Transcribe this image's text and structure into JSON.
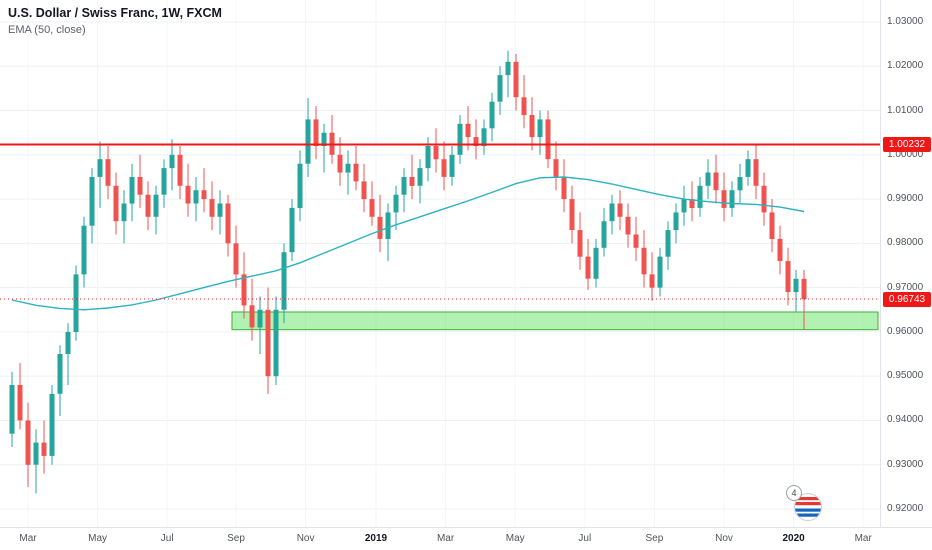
{
  "header": {
    "symbol_title": "U.S. Dollar / Swiss Franc, 1W, FXCM",
    "indicator_label": "EMA (50, close)"
  },
  "watermark": {
    "badge": "4"
  },
  "chart_data": {
    "type": "candlestick",
    "title": "U.S. Dollar / Swiss Franc, 1W, FXCM",
    "symbol": "USD/CHF",
    "interval": "1W",
    "exchange": "FXCM",
    "y_range": [
      0.92,
      1.03
    ],
    "grid": true,
    "colors": {
      "up": "#26a69a",
      "down": "#ef5350",
      "grid_h": "#eef1f6",
      "grid_v": "#f2f4f8"
    },
    "y_tick_labels": [
      "1.03000",
      "1.02000",
      "1.01000",
      "1.00000",
      "0.99000",
      "0.98000",
      "0.97000",
      "0.96000",
      "0.95000",
      "0.94000",
      "0.93000",
      "0.92000"
    ],
    "x_ticks": [
      {
        "label": "Mar",
        "index": 2,
        "bold": false
      },
      {
        "label": "May",
        "index": 10.7,
        "bold": false
      },
      {
        "label": "Jul",
        "index": 19.4,
        "bold": false
      },
      {
        "label": "Sep",
        "index": 28,
        "bold": false
      },
      {
        "label": "Nov",
        "index": 36.7,
        "bold": false
      },
      {
        "label": "2019",
        "index": 45.5,
        "bold": true
      },
      {
        "label": "Mar",
        "index": 54.2,
        "bold": false
      },
      {
        "label": "May",
        "index": 62.9,
        "bold": false
      },
      {
        "label": "Jul",
        "index": 71.6,
        "bold": false
      },
      {
        "label": "Sep",
        "index": 80.3,
        "bold": false
      },
      {
        "label": "Nov",
        "index": 89,
        "bold": false
      },
      {
        "label": "2020",
        "index": 97.7,
        "bold": true
      },
      {
        "label": "Mar",
        "index": 106.4,
        "bold": false
      }
    ],
    "candles": [
      [
        0.937,
        0.951,
        0.934,
        0.948
      ],
      [
        0.948,
        0.953,
        0.938,
        0.94
      ],
      [
        0.94,
        0.944,
        0.925,
        0.93
      ],
      [
        0.93,
        0.938,
        0.9235,
        0.935
      ],
      [
        0.935,
        0.94,
        0.928,
        0.932
      ],
      [
        0.932,
        0.948,
        0.93,
        0.946
      ],
      [
        0.946,
        0.957,
        0.941,
        0.955
      ],
      [
        0.955,
        0.962,
        0.948,
        0.96
      ],
      [
        0.96,
        0.975,
        0.958,
        0.973
      ],
      [
        0.973,
        0.986,
        0.97,
        0.984
      ],
      [
        0.984,
        0.997,
        0.98,
        0.995
      ],
      [
        0.995,
        1.003,
        0.988,
        0.999
      ],
      [
        0.999,
        1.002,
        0.99,
        0.993
      ],
      [
        0.993,
        0.996,
        0.982,
        0.985
      ],
      [
        0.985,
        0.992,
        0.98,
        0.989
      ],
      [
        0.989,
        0.998,
        0.985,
        0.995
      ],
      [
        0.995,
        1.0,
        0.988,
        0.991
      ],
      [
        0.991,
        0.994,
        0.983,
        0.986
      ],
      [
        0.986,
        0.993,
        0.982,
        0.991
      ],
      [
        0.991,
        0.999,
        0.988,
        0.997
      ],
      [
        0.997,
        1.0035,
        0.992,
        1.0
      ],
      [
        1.0,
        1.002,
        0.99,
        0.993
      ],
      [
        0.993,
        0.998,
        0.986,
        0.989
      ],
      [
        0.989,
        0.995,
        0.985,
        0.992
      ],
      [
        0.992,
        0.997,
        0.987,
        0.99
      ],
      [
        0.99,
        0.994,
        0.983,
        0.986
      ],
      [
        0.986,
        0.992,
        0.982,
        0.989
      ],
      [
        0.989,
        0.991,
        0.977,
        0.98
      ],
      [
        0.98,
        0.984,
        0.97,
        0.973
      ],
      [
        0.973,
        0.978,
        0.963,
        0.966
      ],
      [
        0.966,
        0.972,
        0.958,
        0.961
      ],
      [
        0.961,
        0.968,
        0.955,
        0.965
      ],
      [
        0.965,
        0.97,
        0.946,
        0.95
      ],
      [
        0.95,
        0.968,
        0.948,
        0.965
      ],
      [
        0.965,
        0.98,
        0.962,
        0.978
      ],
      [
        0.978,
        0.99,
        0.976,
        0.988
      ],
      [
        0.988,
        1.001,
        0.985,
        0.998
      ],
      [
        0.998,
        1.0128,
        0.995,
        1.008
      ],
      [
        1.008,
        1.011,
        0.999,
        1.002
      ],
      [
        1.002,
        1.007,
        0.996,
        1.005
      ],
      [
        1.005,
        1.009,
        0.998,
        1.0
      ],
      [
        1.0,
        1.004,
        0.993,
        0.996
      ],
      [
        0.996,
        1.001,
        0.991,
        0.998
      ],
      [
        0.998,
        1.002,
        0.992,
        0.994
      ],
      [
        0.994,
        0.998,
        0.987,
        0.99
      ],
      [
        0.99,
        0.994,
        0.984,
        0.986
      ],
      [
        0.986,
        0.991,
        0.978,
        0.981
      ],
      [
        0.981,
        0.989,
        0.976,
        0.987
      ],
      [
        0.987,
        0.993,
        0.983,
        0.991
      ],
      [
        0.991,
        0.997,
        0.987,
        0.995
      ],
      [
        0.995,
        1.0,
        0.99,
        0.993
      ],
      [
        0.993,
        0.999,
        0.989,
        0.997
      ],
      [
        0.997,
        1.004,
        0.994,
        1.002
      ],
      [
        1.002,
        1.006,
        0.996,
        0.999
      ],
      [
        0.999,
        1.003,
        0.992,
        0.995
      ],
      [
        0.995,
        1.002,
        0.993,
        1.0
      ],
      [
        1.0,
        1.009,
        0.998,
        1.007
      ],
      [
        1.007,
        1.011,
        1.001,
        1.004
      ],
      [
        1.004,
        1.008,
        0.999,
        1.002
      ],
      [
        1.002,
        1.008,
        1.0,
        1.006
      ],
      [
        1.006,
        1.014,
        1.003,
        1.012
      ],
      [
        1.012,
        1.02,
        1.009,
        1.018
      ],
      [
        1.018,
        1.0235,
        1.013,
        1.021
      ],
      [
        1.021,
        1.0228,
        1.01,
        1.013
      ],
      [
        1.013,
        1.018,
        1.006,
        1.009
      ],
      [
        1.009,
        1.013,
        1.001,
        1.004
      ],
      [
        1.004,
        1.01,
        1.0,
        1.008
      ],
      [
        1.008,
        1.01,
        0.997,
        0.999
      ],
      [
        0.999,
        1.003,
        0.992,
        0.995
      ],
      [
        0.995,
        0.999,
        0.987,
        0.99
      ],
      [
        0.99,
        0.993,
        0.98,
        0.983
      ],
      [
        0.983,
        0.987,
        0.974,
        0.977
      ],
      [
        0.977,
        0.981,
        0.9695,
        0.972
      ],
      [
        0.972,
        0.981,
        0.97,
        0.979
      ],
      [
        0.979,
        0.988,
        0.977,
        0.985
      ],
      [
        0.985,
        0.991,
        0.982,
        0.989
      ],
      [
        0.989,
        0.992,
        0.983,
        0.986
      ],
      [
        0.986,
        0.989,
        0.979,
        0.982
      ],
      [
        0.982,
        0.986,
        0.976,
        0.979
      ],
      [
        0.979,
        0.983,
        0.97,
        0.973
      ],
      [
        0.973,
        0.978,
        0.967,
        0.97
      ],
      [
        0.97,
        0.979,
        0.968,
        0.977
      ],
      [
        0.977,
        0.985,
        0.974,
        0.983
      ],
      [
        0.983,
        0.989,
        0.98,
        0.987
      ],
      [
        0.987,
        0.993,
        0.984,
        0.99
      ],
      [
        0.99,
        0.994,
        0.985,
        0.988
      ],
      [
        0.988,
        0.995,
        0.986,
        0.993
      ],
      [
        0.993,
        0.999,
        0.99,
        0.996
      ],
      [
        0.996,
        1.0,
        0.989,
        0.992
      ],
      [
        0.992,
        0.996,
        0.985,
        0.988
      ],
      [
        0.988,
        0.994,
        0.986,
        0.992
      ],
      [
        0.992,
        0.998,
        0.989,
        0.995
      ],
      [
        0.995,
        1.001,
        0.993,
        0.999
      ],
      [
        0.999,
        1.0023,
        0.99,
        0.993
      ],
      [
        0.993,
        0.996,
        0.984,
        0.987
      ],
      [
        0.987,
        0.99,
        0.978,
        0.981
      ],
      [
        0.981,
        0.984,
        0.973,
        0.976
      ],
      [
        0.976,
        0.979,
        0.966,
        0.969
      ],
      [
        0.969,
        0.974,
        0.9645,
        0.972
      ],
      [
        0.972,
        0.974,
        0.9605,
        0.9674
      ]
    ],
    "ema": {
      "period": 50,
      "source": "close",
      "color": "#2bb3c0",
      "points": [
        [
          0,
          0.9672
        ],
        [
          3,
          0.966
        ],
        [
          6,
          0.9653
        ],
        [
          9,
          0.965
        ],
        [
          12,
          0.9654
        ],
        [
          15,
          0.9661
        ],
        [
          18,
          0.9672
        ],
        [
          21,
          0.9686
        ],
        [
          24,
          0.97
        ],
        [
          27,
          0.9714
        ],
        [
          30,
          0.9726
        ],
        [
          33,
          0.9738
        ],
        [
          36,
          0.9756
        ],
        [
          39,
          0.9778
        ],
        [
          42,
          0.98
        ],
        [
          45,
          0.9822
        ],
        [
          48,
          0.9842
        ],
        [
          51,
          0.986
        ],
        [
          54,
          0.9878
        ],
        [
          57,
          0.9896
        ],
        [
          60,
          0.9915
        ],
        [
          63,
          0.9935
        ],
        [
          66,
          0.9948
        ],
        [
          69,
          0.995
        ],
        [
          72,
          0.9944
        ],
        [
          75,
          0.9934
        ],
        [
          78,
          0.9922
        ],
        [
          81,
          0.991
        ],
        [
          84,
          0.99
        ],
        [
          87,
          0.9894
        ],
        [
          90,
          0.989
        ],
        [
          93,
          0.9888
        ],
        [
          96,
          0.9882
        ],
        [
          99,
          0.9872
        ]
      ]
    },
    "resistance_line": {
      "price": 1.00232,
      "label": "1.00232",
      "color": "#f01717"
    },
    "current_price": {
      "value": 0.96743,
      "label": "0.96743",
      "direction": "down",
      "label_color": "#f01717"
    },
    "support_zone": {
      "start_index": 27.5,
      "price_top": 0.9645,
      "price_bottom": 0.9605,
      "fill": "#7de87d",
      "border": "#3cae3c"
    }
  }
}
